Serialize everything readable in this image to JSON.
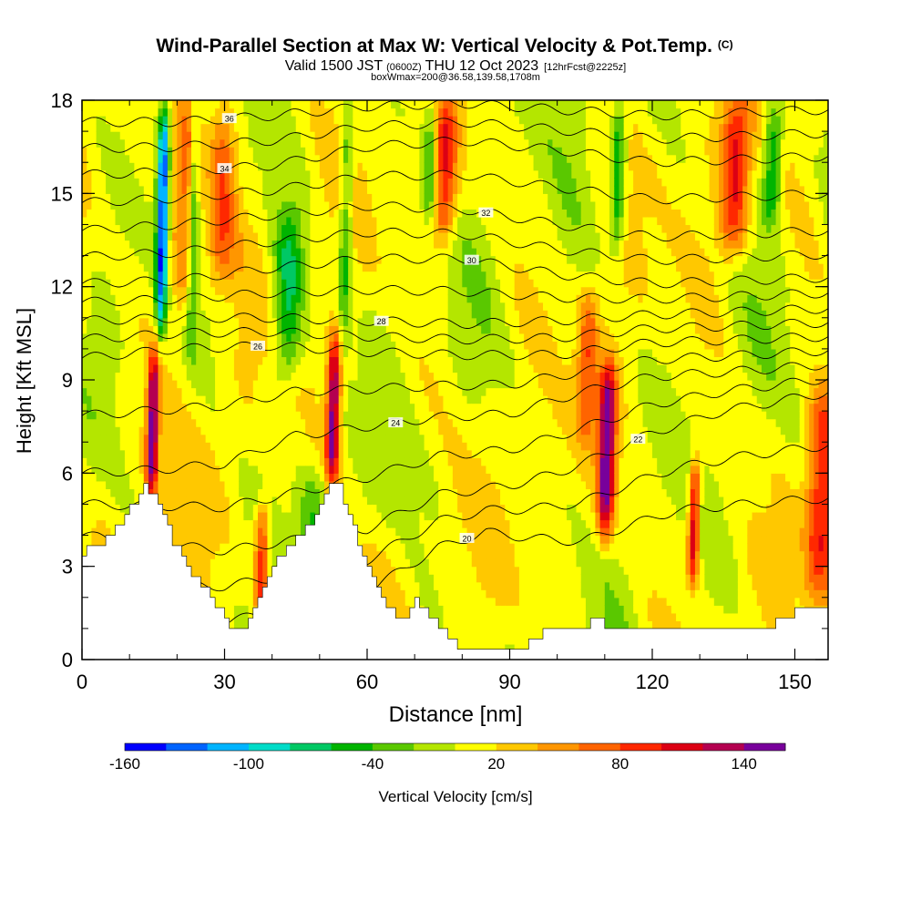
{
  "chart_data": {
    "type": "heatmap",
    "title": "Wind-Parallel Section at Max W: Vertical Velocity & Pot.Temp.",
    "title_mark": "(C)",
    "subtitle": {
      "prefix": "Valid 1500 JST",
      "utc": "(0600Z)",
      "date": "THU 12 Oct 2023",
      "forecast": "[12hrFcst@2225z]"
    },
    "box_info": "boxWmax=200@36.58,139.58,1708m",
    "xlabel": "Distance [nm]",
    "ylabel": "Height [Kft MSL]",
    "xlim": [
      0,
      157
    ],
    "ylim": [
      0,
      18
    ],
    "x_ticks": [
      "0",
      "30",
      "60",
      "90",
      "120",
      "150"
    ],
    "y_ticks": [
      "0",
      "3",
      "6",
      "9",
      "12",
      "15",
      "18"
    ],
    "colorbar": {
      "label": "Vertical Velocity [cm/s]",
      "tick_labels": [
        "-160",
        "-100",
        "-40",
        "20",
        "80",
        "140"
      ],
      "tick_values": [
        -160,
        -100,
        -40,
        20,
        80,
        140
      ],
      "levels": [
        -160,
        -140,
        -120,
        -100,
        -80,
        -60,
        -40,
        -20,
        0,
        20,
        40,
        60,
        80,
        100,
        120,
        140,
        160
      ],
      "colors": [
        "#0000ff",
        "#0064ff",
        "#00b4ff",
        "#00dcc8",
        "#00c864",
        "#00b400",
        "#5ac800",
        "#b4e600",
        "#ffff00",
        "#ffc800",
        "#ff9600",
        "#ff6400",
        "#ff2800",
        "#dc0014",
        "#b40050",
        "#78009b"
      ]
    },
    "terrain_height_kft": [
      [
        0,
        3.4
      ],
      [
        2,
        3.6
      ],
      [
        4,
        3.8
      ],
      [
        6,
        4.1
      ],
      [
        8,
        4.4
      ],
      [
        10,
        4.9
      ],
      [
        12,
        5.3
      ],
      [
        13,
        5.6
      ],
      [
        15,
        5.2
      ],
      [
        17,
        4.6
      ],
      [
        19,
        3.8
      ],
      [
        21,
        3.2
      ],
      [
        23,
        2.8
      ],
      [
        25,
        2.4
      ],
      [
        27,
        2.0
      ],
      [
        29,
        1.5
      ],
      [
        31,
        1.1
      ],
      [
        33,
        1.0
      ],
      [
        35,
        1.3
      ],
      [
        37,
        2.0
      ],
      [
        39,
        2.8
      ],
      [
        41,
        3.2
      ],
      [
        43,
        3.6
      ],
      [
        45,
        3.9
      ],
      [
        47,
        4.2
      ],
      [
        49,
        4.7
      ],
      [
        51,
        5.2
      ],
      [
        52,
        5.6
      ],
      [
        54,
        5.5
      ],
      [
        56,
        4.8
      ],
      [
        58,
        3.8
      ],
      [
        60,
        3.1
      ],
      [
        62,
        2.4
      ],
      [
        64,
        1.7
      ],
      [
        66,
        1.3
      ],
      [
        68,
        1.3
      ],
      [
        70,
        1.9
      ],
      [
        72,
        1.5
      ],
      [
        74,
        1.2
      ],
      [
        76,
        0.9
      ],
      [
        78,
        0.5
      ],
      [
        80,
        0.3
      ],
      [
        85,
        0.3
      ],
      [
        90,
        0.3
      ],
      [
        95,
        0.6
      ],
      [
        98,
        1.0
      ],
      [
        103,
        1.1
      ],
      [
        106,
        1.1
      ],
      [
        108,
        1.4
      ],
      [
        110,
        1.1
      ],
      [
        113,
        1.1
      ],
      [
        116,
        1.0
      ],
      [
        120,
        1.0
      ],
      [
        124,
        1.0
      ],
      [
        130,
        1.1
      ],
      [
        135,
        1.1
      ],
      [
        140,
        1.0
      ],
      [
        145,
        1.1
      ],
      [
        148,
        1.3
      ],
      [
        150,
        1.5
      ],
      [
        153,
        1.6
      ],
      [
        157,
        1.6
      ]
    ],
    "updraft_columns": [
      {
        "x": 14.5,
        "w": 1.2,
        "z0": 5.0,
        "z1": 10.0,
        "peak": 140
      },
      {
        "x": 52.5,
        "w": 1.4,
        "z0": 5.5,
        "z1": 10.5,
        "peak": 140
      },
      {
        "x": 110.0,
        "w": 1.8,
        "z0": 4.0,
        "z1": 9.5,
        "peak": 150
      },
      {
        "x": 128.5,
        "w": 1.2,
        "z0": 2.5,
        "z1": 6.5,
        "peak": 120
      },
      {
        "x": 37.5,
        "w": 1.5,
        "z0": 1.5,
        "z1": 5.0,
        "peak": 90
      },
      {
        "x": 21.0,
        "w": 3.0,
        "z0": 11.0,
        "z1": 18.0,
        "peak": 70
      },
      {
        "x": 29.0,
        "w": 3.0,
        "z0": 12.0,
        "z1": 18.0,
        "peak": 70
      },
      {
        "x": 76.0,
        "w": 2.5,
        "z0": 13.5,
        "z1": 18.0,
        "peak": 90
      },
      {
        "x": 137.0,
        "w": 3.0,
        "z0": 13.0,
        "z1": 18.0,
        "peak": 90
      },
      {
        "x": 155.0,
        "w": 3.0,
        "z0": 2.0,
        "z1": 9.0,
        "peak": 90
      },
      {
        "x": 106.0,
        "w": 2.0,
        "z0": 7.0,
        "z1": 12.0,
        "peak": 60
      }
    ],
    "downdraft_columns": [
      {
        "x": 16.5,
        "w": 1.2,
        "z0": 10.5,
        "z1": 18.0,
        "peak": -150
      },
      {
        "x": 23.0,
        "w": 1.0,
        "z0": 10.0,
        "z1": 18.0,
        "peak": -60
      },
      {
        "x": 43.0,
        "w": 3.0,
        "z0": 9.0,
        "z1": 14.5,
        "peak": -70
      },
      {
        "x": 55.0,
        "w": 1.5,
        "z0": 10.0,
        "z1": 18.0,
        "peak": -60
      },
      {
        "x": 73.0,
        "w": 1.5,
        "z0": 14.0,
        "z1": 18.0,
        "peak": -60
      },
      {
        "x": 112.5,
        "w": 1.5,
        "z0": 13.0,
        "z1": 18.0,
        "peak": -70
      },
      {
        "x": 145.0,
        "w": 2.0,
        "z0": 14.0,
        "z1": 18.0,
        "peak": -70
      },
      {
        "x": 48.0,
        "w": 3.0,
        "z0": 2.0,
        "z1": 6.0,
        "peak": -40
      }
    ],
    "isentropes_C": [
      {
        "theta": 20,
        "x": [
          0,
          30,
          60,
          75,
          85,
          95,
          105,
          115,
          125,
          140,
          157
        ],
        "z": [
          1.0,
          1.2,
          2.2,
          3.6,
          4.1,
          3.9,
          3.8,
          4.3,
          4.8,
          5.0,
          5.2
        ],
        "label": "20",
        "label_x": 81
      },
      {
        "theta": 22,
        "x": [
          0,
          30,
          60,
          75,
          90,
          100,
          110,
          120,
          135,
          157
        ],
        "z": [
          4.0,
          3.5,
          4.2,
          5.3,
          5.6,
          6.0,
          6.6,
          7.3,
          8.0,
          8.6
        ],
        "label": "22",
        "label_x": 117
      },
      {
        "theta": 24,
        "x": [
          0,
          15,
          30,
          45,
          60,
          75,
          90,
          105,
          120,
          140,
          157
        ],
        "z": [
          6.0,
          6.1,
          6.3,
          7.2,
          7.5,
          7.8,
          7.9,
          8.6,
          9.1,
          9.3,
          9.5
        ],
        "label": "24",
        "label_x": 66
      },
      {
        "theta": 26,
        "x": [
          0,
          20,
          40,
          60,
          80,
          100,
          120,
          140,
          157
        ],
        "z": [
          9.7,
          10.0,
          10.1,
          9.9,
          9.8,
          9.8,
          10.2,
          10.3,
          10.4
        ],
        "label": "26",
        "label_x": 37
      },
      {
        "theta": 28,
        "x": [
          0,
          20,
          40,
          60,
          80,
          100,
          120,
          140,
          157
        ],
        "z": [
          10.9,
          11.0,
          11.0,
          10.9,
          10.8,
          10.9,
          11.1,
          11.2,
          11.3
        ],
        "label": "28",
        "label_x": 63
      },
      {
        "theta": 30,
        "x": [
          0,
          20,
          40,
          60,
          80,
          100,
          120,
          140,
          157
        ],
        "z": [
          12.1,
          12.2,
          12.6,
          12.9,
          12.9,
          12.4,
          12.1,
          12.2,
          12.3
        ],
        "label": "30",
        "label_x": 82
      },
      {
        "theta": 32,
        "x": [
          0,
          20,
          40,
          60,
          80,
          100,
          120,
          140,
          157
        ],
        "z": [
          13.8,
          14.0,
          14.3,
          14.6,
          14.5,
          14.0,
          13.6,
          13.7,
          13.8
        ],
        "label": "32",
        "label_x": 85
      },
      {
        "theta": 34,
        "x": [
          0,
          20,
          40,
          60,
          80,
          100,
          120,
          140,
          157
        ],
        "z": [
          15.6,
          15.7,
          15.9,
          16.5,
          16.7,
          16.4,
          16.0,
          16.1,
          16.2
        ],
        "label": "34",
        "label_x": 30
      },
      {
        "theta": 36,
        "x": [
          0,
          20,
          40,
          60,
          80,
          100,
          120,
          140,
          157
        ],
        "z": [
          17.3,
          17.3,
          17.5,
          17.8,
          17.9,
          17.7,
          17.5,
          17.6,
          17.7
        ],
        "label": "36",
        "label_x": 31
      }
    ]
  }
}
